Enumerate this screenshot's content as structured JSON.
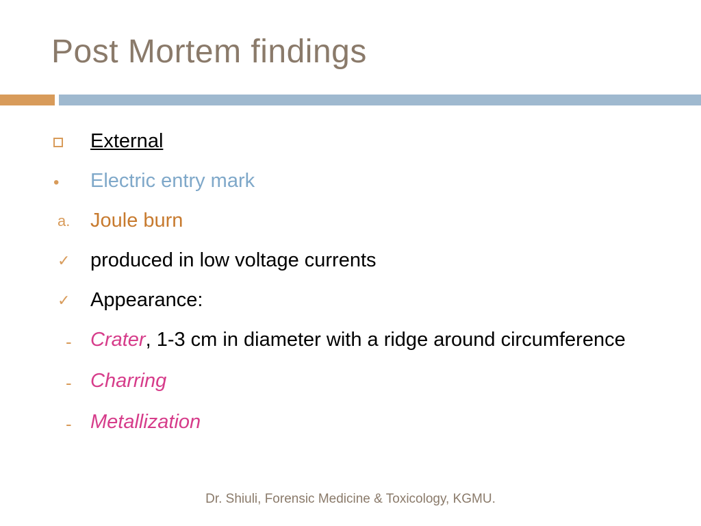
{
  "title": "Post Mortem findings",
  "colors": {
    "title": "#8a7a6a",
    "accent_orange": "#d89b5a",
    "accent_blue": "#9fb9cf",
    "text_black": "#000000",
    "text_blue": "#7fa8c9",
    "text_orange": "#c77a2e",
    "text_pink": "#d63c8a",
    "footer": "#8a7a6a",
    "background": "#ffffff"
  },
  "items": {
    "external": "External",
    "entry_mark": "Electric entry mark",
    "joule_marker": "a.",
    "joule": "Joule burn",
    "produced": "produced in low voltage currents",
    "appearance": "Appearance:",
    "crater_em": "Crater",
    "crater_tail": ", 1-3 cm in diameter with a ridge around circumference",
    "charring": "Charring",
    "metallization": "Metallization"
  },
  "footer": "Dr. Shiuli, Forensic Medicine & Toxicology, KGMU.",
  "typography": {
    "title_fontsize": 48,
    "body_fontsize": 29,
    "footer_fontsize": 19
  }
}
